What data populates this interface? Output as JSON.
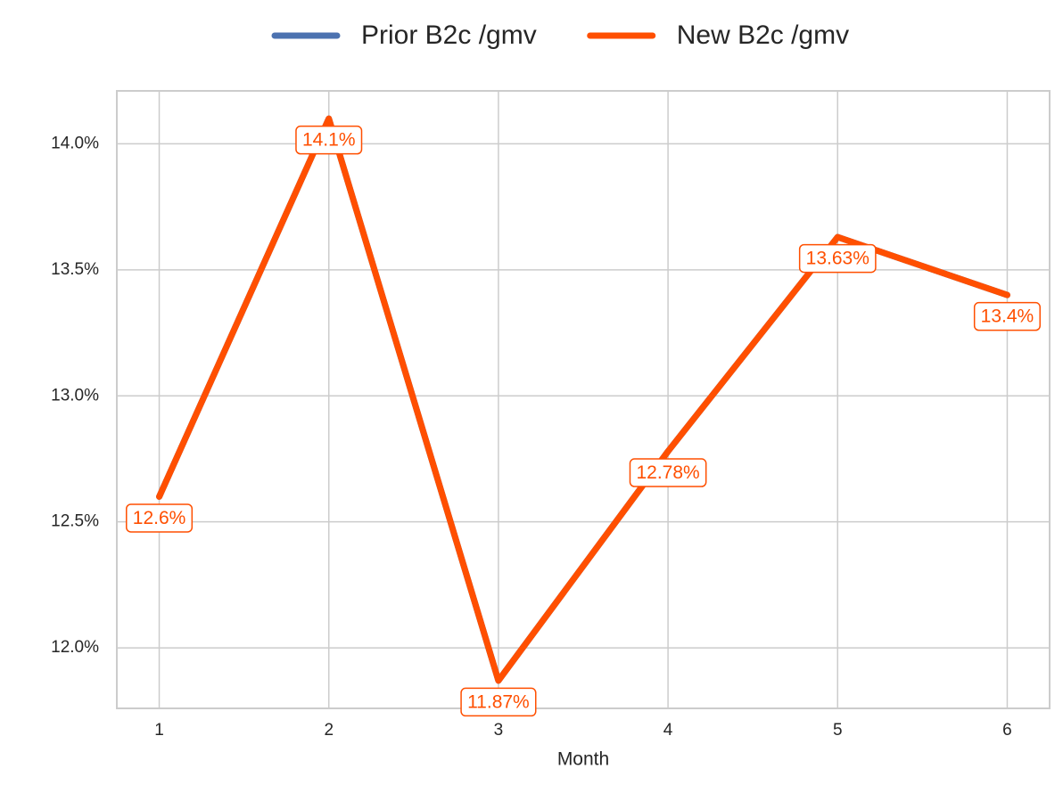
{
  "chart_data": {
    "type": "line",
    "x": [
      1,
      2,
      3,
      4,
      5,
      6
    ],
    "series": [
      {
        "name": "Prior B2c /gmv",
        "color": "#4c72b0",
        "values": [
          12.6,
          14.1,
          11.87,
          12.78,
          13.63,
          13.4
        ]
      },
      {
        "name": "New B2c /gmv",
        "color": "#ff4f00",
        "values": [
          12.6,
          14.1,
          11.87,
          12.78,
          13.63,
          13.4
        ],
        "value_labels": [
          "12.6%",
          "14.1%",
          "11.87%",
          "12.78%",
          "13.63%",
          "13.4%"
        ]
      }
    ],
    "xlabel": "Month",
    "xlim": [
      0.75,
      6.25
    ],
    "xticks": [
      1,
      2,
      3,
      4,
      5,
      6
    ],
    "ylim": [
      11.76,
      14.21
    ],
    "yticks": [
      {
        "value": 12,
        "label": "12.0%"
      },
      {
        "value": 12.5,
        "label": "12.5%"
      },
      {
        "value": 13,
        "label": "13.0%"
      },
      {
        "value": 13.5,
        "label": "13.5%"
      },
      {
        "value": 14,
        "label": "14.0%"
      }
    ],
    "grid": true,
    "legend": "top"
  }
}
